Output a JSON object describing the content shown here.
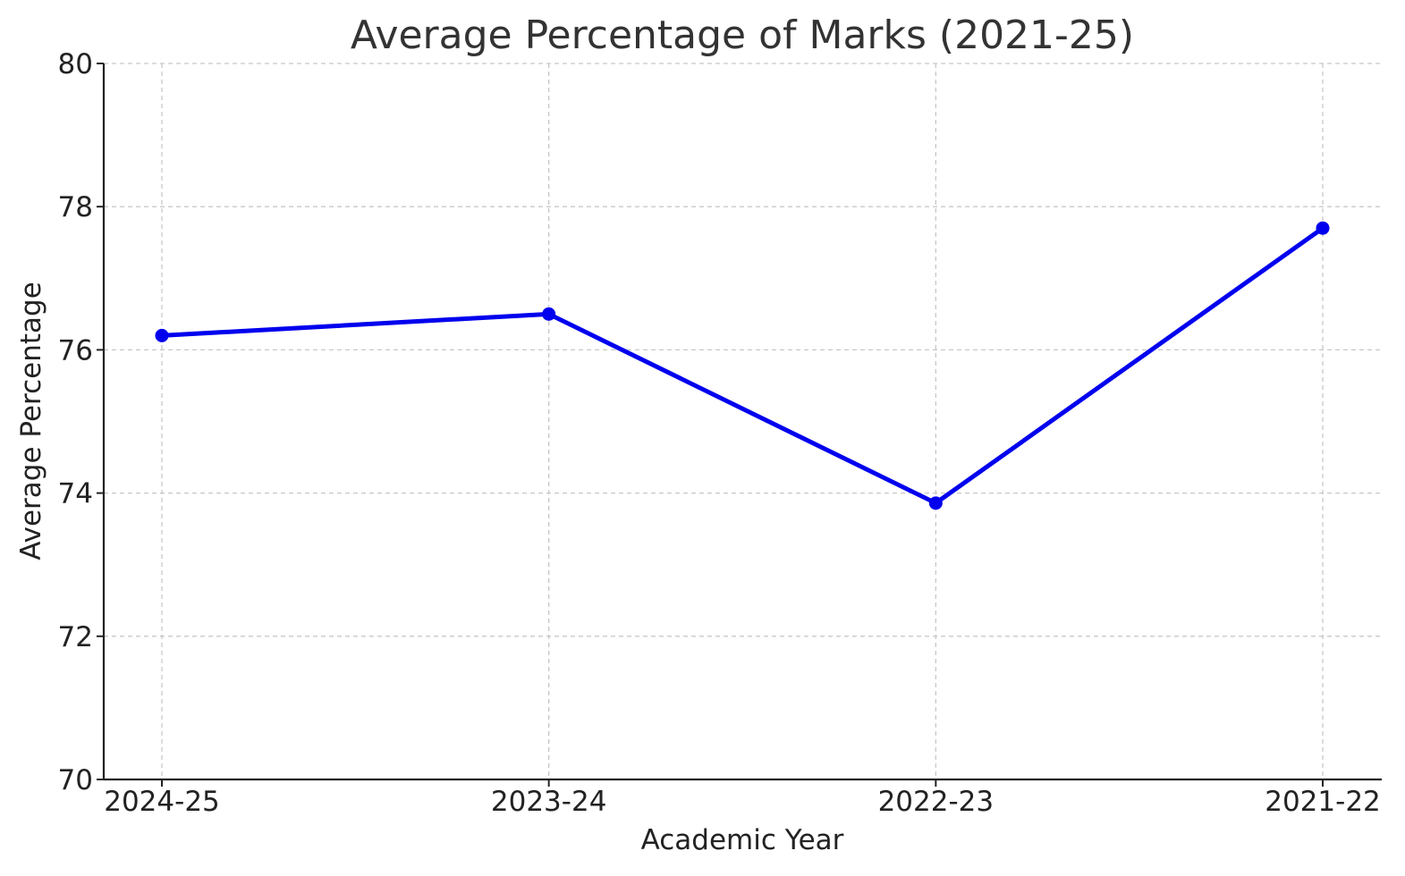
{
  "chart_data": {
    "type": "line",
    "title": "Average Percentage of Marks (2021-25)",
    "xlabel": "Academic Year",
    "ylabel": "Average Percentage",
    "categories": [
      "2024-25",
      "2023-24",
      "2022-23",
      "2021-22"
    ],
    "series": [
      {
        "values": [
          76.2,
          76.5,
          73.86,
          77.7
        ],
        "color": "#0000ee",
        "marker": "circle"
      }
    ],
    "ylim": [
      70,
      80
    ],
    "yticks": [
      70,
      72,
      74,
      76,
      78,
      80
    ],
    "grid": true,
    "legend": "none"
  }
}
